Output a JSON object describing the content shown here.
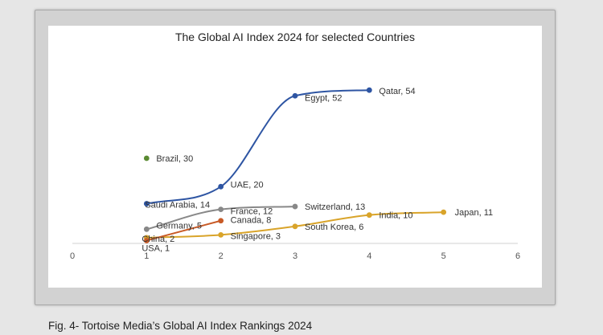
{
  "caption": "Fig. 4- Tortoise Media’s Global AI Index Rankings 2024",
  "chart_data": {
    "type": "scatter",
    "title": "The Global AI Index 2024 for selected Countries",
    "xlim": [
      0,
      6
    ],
    "ylim": [
      0,
      60
    ],
    "xticks": [
      "0",
      "1",
      "2",
      "3",
      "4",
      "5",
      "6"
    ],
    "grid": false,
    "series": [
      {
        "color": "#2e55a3",
        "points": [
          {
            "x": 1,
            "y": 14,
            "label": "Saudi Arabia, 14"
          },
          {
            "x": 2,
            "y": 20,
            "label": "UAE, 20"
          },
          {
            "x": 3,
            "y": 52,
            "label": "Egypt, 52"
          },
          {
            "x": 4,
            "y": 54,
            "label": "Qatar, 54"
          }
        ]
      },
      {
        "color": "#888888",
        "points": [
          {
            "x": 1,
            "y": 5,
            "label": "Germany, 5"
          },
          {
            "x": 2,
            "y": 12,
            "label": "France, 12"
          },
          {
            "x": 3,
            "y": 13,
            "label": "Switzerland, 13"
          }
        ]
      },
      {
        "color": "#d9a42a",
        "points": [
          {
            "x": 1,
            "y": 2,
            "label": "China, 2"
          },
          {
            "x": 2,
            "y": 3,
            "label": "Singapore, 3"
          },
          {
            "x": 3,
            "y": 6,
            "label": "South Korea, 6"
          },
          {
            "x": 4,
            "y": 10,
            "label": "India, 10"
          },
          {
            "x": 5,
            "y": 11,
            "label": "Japan, 11"
          }
        ]
      },
      {
        "color": "#c85a26",
        "points": [
          {
            "x": 1,
            "y": 1,
            "label": "USA, 1"
          },
          {
            "x": 2,
            "y": 8,
            "label": "Canada, 8"
          }
        ]
      },
      {
        "color": "#5a8a32",
        "points": [
          {
            "x": 1,
            "y": 30,
            "label": "Brazil, 30"
          }
        ]
      }
    ]
  }
}
